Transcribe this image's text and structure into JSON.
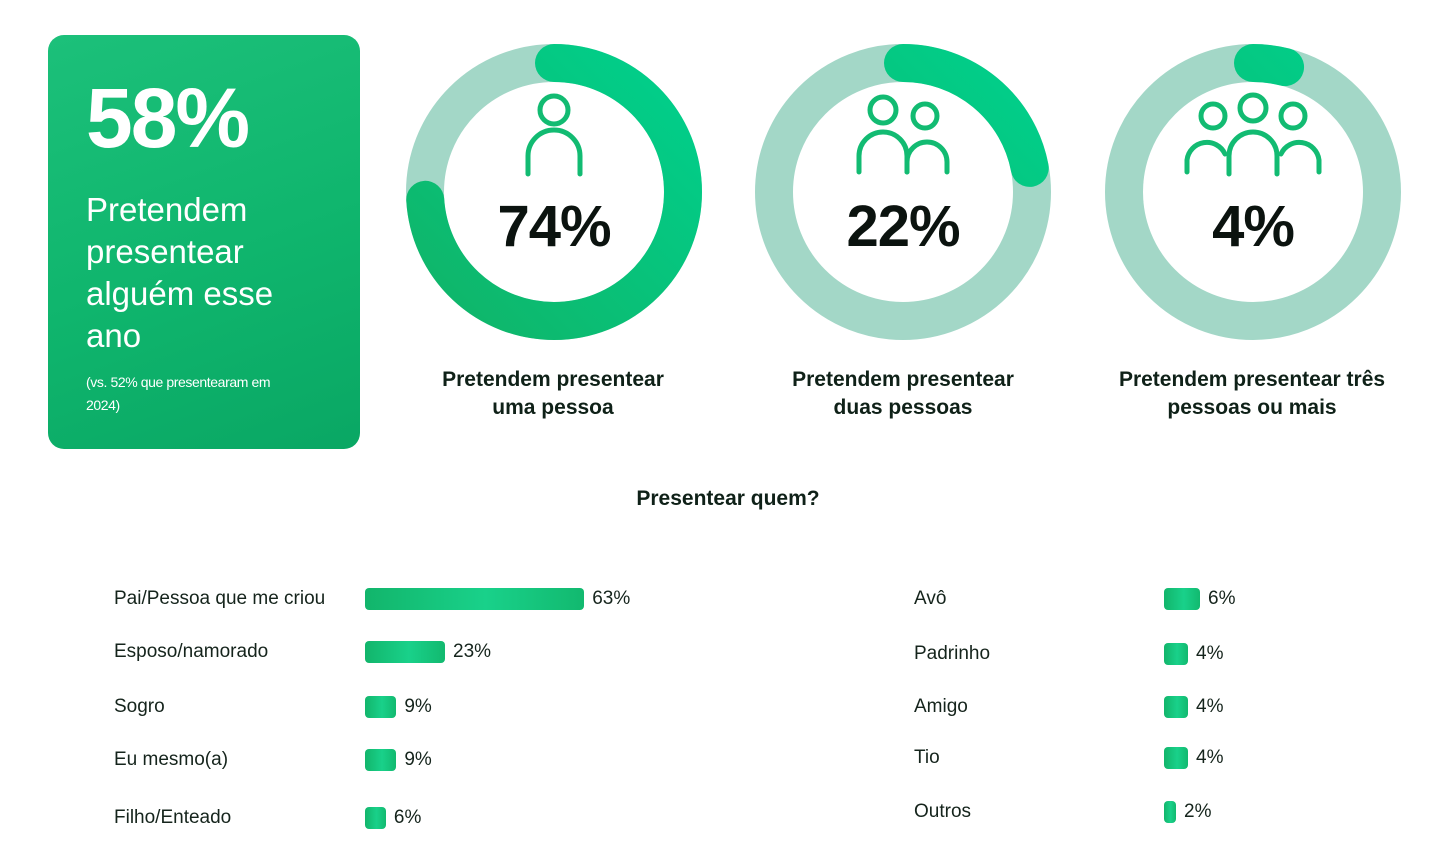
{
  "colors": {
    "accent": "#0fb56d",
    "ring_track": "#a3d7c7",
    "ring_fill_start": "#11b468",
    "ring_fill_end": "#00d08c"
  },
  "hero": {
    "value": "58%",
    "text": "Pretendem presentear alguém esse ano",
    "note": "(vs. 52% que presentearam em 2024)"
  },
  "donuts": [
    {
      "value": "74%",
      "fraction": 0.74,
      "icon": "person-icon",
      "caption_line1": "Pretendem presentear",
      "caption_line2": "uma pessoa"
    },
    {
      "value": "22%",
      "fraction": 0.22,
      "icon": "two-people-icon",
      "caption_line1": "Pretendem presentear",
      "caption_line2": "duas pessoas"
    },
    {
      "value": "4%",
      "fraction": 0.04,
      "icon": "group-people-icon",
      "caption_line1": "Pretendem presentear três",
      "caption_line2": "pessoas ou mais"
    }
  ],
  "section_title": "Presentear quem?",
  "chart_data": {
    "type": "bar",
    "title": "Presentear quem?",
    "unit": "%",
    "xlim": [
      0,
      63
    ],
    "groups": [
      {
        "categories": [
          "Pai/Pessoa que me criou",
          "Esposo/namorado",
          "Sogro",
          "Eu mesmo(a)",
          "Filho/Enteado"
        ],
        "values": [
          63,
          23,
          9,
          9,
          6
        ],
        "labels": [
          "63%",
          "23%",
          "9%",
          "9%",
          "6%"
        ]
      },
      {
        "categories": [
          "Avô",
          "Padrinho",
          "Amigo",
          "Tio",
          "Outros"
        ],
        "values": [
          6,
          4,
          4,
          4,
          2
        ],
        "labels": [
          "6%",
          "4%",
          "4%",
          "4%",
          "2%"
        ]
      }
    ]
  }
}
